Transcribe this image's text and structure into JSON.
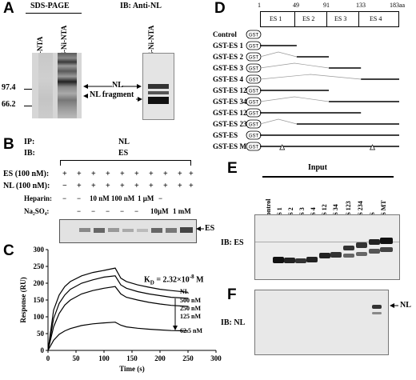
{
  "panels": {
    "A": {
      "letter": "A",
      "sds_title": "SDS-PAGE",
      "ib_title": "IB:  Anti-NL",
      "lanes": [
        "Ni-NTA",
        "ES-Ni-NTA"
      ],
      "ib_lane": "ES-Ni-NTA",
      "markers": [
        "97.4",
        "66.2"
      ],
      "nl_label": "NL",
      "nl_fragment_label": "NL fragment"
    },
    "B": {
      "letter": "B",
      "ip_label": "IP:",
      "ip_value": "NL",
      "ib_label": "IB:",
      "ib_value": "ES",
      "es_row_label": "ES (100 nM):",
      "es_row_values": [
        "+",
        "+",
        "+",
        "+",
        "+",
        "+",
        "+",
        "+",
        "+",
        "+"
      ],
      "nl_row_label": "NL (100 nM):",
      "nl_row_values": [
        "−",
        "+",
        "+",
        "+",
        "+",
        "+",
        "+",
        "+",
        "+",
        "+"
      ],
      "heparin_label": "Heparin:",
      "heparin_values": [
        "−",
        "−",
        "10 nM",
        "100 nM",
        "1 μM",
        "−"
      ],
      "na2so4_label": "Na₂SO₄:",
      "na2so4_values": [
        "−",
        "−",
        "−",
        "−",
        "−",
        "10μM",
        "1 mM"
      ],
      "band_label": "ES"
    },
    "C": {
      "letter": "C",
      "kd_label": "K",
      "kd_sub": "D",
      "kd_value": " = 2.32×10",
      "kd_exp": "-8",
      "kd_unit": " M",
      "legend_title": "NL",
      "concentrations": [
        "500 nM",
        "250 nM",
        "125 nM",
        "62.5 nM"
      ]
    },
    "D": {
      "letter": "D",
      "scale_ticks": [
        "1",
        "49",
        "91",
        "133",
        "183aa"
      ],
      "domains": [
        "ES 1",
        "ES 2",
        "ES 3",
        "ES 4"
      ],
      "constructs": [
        "Control",
        "GST-ES 1",
        "GST-ES 2",
        "GST-ES 3",
        "GST-ES 4",
        "GST-ES 12",
        "GST-ES 34",
        "GST-ES 123",
        "GST-ES 234",
        "GST-ES",
        "GST-ES MT"
      ],
      "gst_tag": "GST"
    },
    "E": {
      "letter": "E",
      "input_label": "Input",
      "lanes": [
        "Control",
        "ES 1",
        "ES 2",
        "ES 3",
        "ES 4",
        "ES 12",
        "ES 34",
        "ES 123",
        "ES 234",
        "ES",
        "ES MT"
      ],
      "ib_label": "IB: ES"
    },
    "F": {
      "letter": "F",
      "ib_label": "IB: NL",
      "band_label": "NL"
    }
  },
  "chart_data": {
    "type": "line",
    "title": "",
    "xlabel": "Time (s)",
    "ylabel": "Response (RU)",
    "xlim": [
      0,
      300
    ],
    "ylim": [
      0,
      300
    ],
    "xticks": [
      0,
      50,
      100,
      150,
      200,
      250,
      300
    ],
    "yticks": [
      0,
      50,
      100,
      150,
      200,
      250,
      300
    ],
    "grid": false,
    "legend_position": "right",
    "series": [
      {
        "name": "500 nM",
        "x": [
          0,
          10,
          20,
          30,
          40,
          60,
          80,
          100,
          120,
          130,
          140,
          160,
          180,
          200,
          220,
          250
        ],
        "y": [
          0,
          120,
          165,
          190,
          205,
          222,
          232,
          238,
          245,
          215,
          205,
          195,
          188,
          182,
          178,
          173
        ]
      },
      {
        "name": "250 nM",
        "x": [
          0,
          10,
          20,
          30,
          40,
          60,
          80,
          100,
          120,
          130,
          140,
          160,
          180,
          200,
          220,
          250
        ],
        "y": [
          0,
          95,
          140,
          165,
          182,
          200,
          210,
          218,
          222,
          195,
          185,
          175,
          168,
          163,
          158,
          155
        ]
      },
      {
        "name": "125 nM",
        "x": [
          0,
          10,
          20,
          30,
          40,
          60,
          80,
          100,
          120,
          130,
          140,
          160,
          180,
          200,
          220,
          250
        ],
        "y": [
          0,
          70,
          110,
          135,
          150,
          168,
          178,
          185,
          190,
          168,
          158,
          150,
          143,
          138,
          134,
          131
        ]
      },
      {
        "name": "62.5 nM",
        "x": [
          0,
          10,
          20,
          30,
          40,
          60,
          80,
          100,
          120,
          130,
          140,
          160,
          180,
          200,
          220,
          250
        ],
        "y": [
          0,
          30,
          48,
          58,
          65,
          74,
          79,
          82,
          84,
          75,
          70,
          66,
          63,
          61,
          59,
          58
        ]
      }
    ]
  }
}
